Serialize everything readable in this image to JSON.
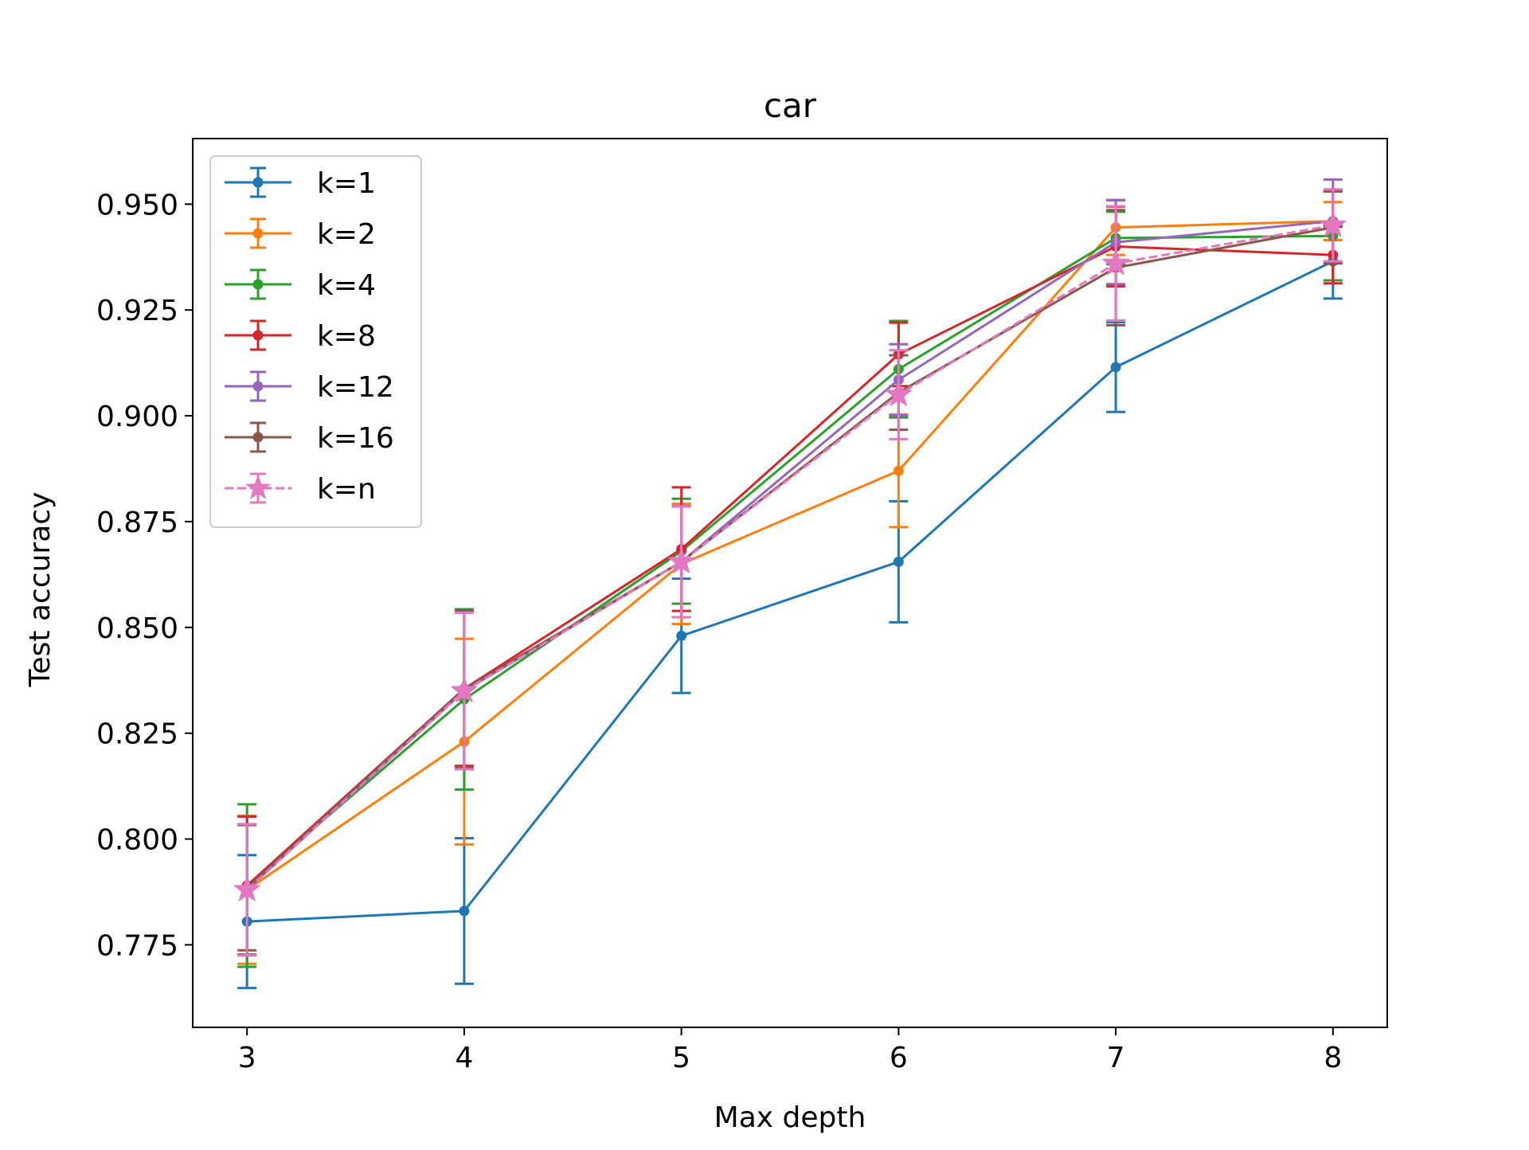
{
  "chart_data": {
    "type": "line",
    "title": "car",
    "xlabel": "Max depth",
    "ylabel": "Test accuracy",
    "x": [
      3,
      4,
      5,
      6,
      7,
      8
    ],
    "xlim": [
      2.75,
      8.25
    ],
    "ylim": [
      0.7555,
      0.9655
    ],
    "xticks": [
      "3",
      "4",
      "5",
      "6",
      "7",
      "8"
    ],
    "yticks": [
      "0.775",
      "0.800",
      "0.825",
      "0.850",
      "0.875",
      "0.900",
      "0.925",
      "0.950"
    ],
    "yticks_values": [
      0.775,
      0.8,
      0.825,
      0.85,
      0.875,
      0.9,
      0.925,
      0.95
    ],
    "grid": false,
    "legend_position": "top-left",
    "series": [
      {
        "name": "k=1",
        "color": "#1f77b4",
        "marker": "circle",
        "dashed": false,
        "values": [
          0.7805,
          0.783,
          0.848,
          0.8655,
          0.9115,
          0.9365
        ],
        "errors": [
          0.0157,
          0.0172,
          0.0135,
          0.0143,
          0.0106,
          0.0088
        ]
      },
      {
        "name": "k=2",
        "color": "#ff7f0e",
        "marker": "circle",
        "dashed": false,
        "values": [
          0.788,
          0.823,
          0.865,
          0.887,
          0.9445,
          0.946
        ],
        "errors": [
          0.0175,
          0.0243,
          0.0142,
          0.0133,
          0.0065,
          0.0045
        ]
      },
      {
        "name": "k=4",
        "color": "#2ca02c",
        "marker": "circle",
        "dashed": false,
        "values": [
          0.789,
          0.833,
          0.868,
          0.911,
          0.942,
          0.9425
        ],
        "errors": [
          0.0192,
          0.0213,
          0.0124,
          0.0114,
          0.0062,
          0.0105
        ]
      },
      {
        "name": "k=8",
        "color": "#d62728",
        "marker": "circle",
        "dashed": false,
        "values": [
          0.789,
          0.8355,
          0.8685,
          0.9145,
          0.94,
          0.938
        ],
        "errors": [
          0.0163,
          0.0182,
          0.0146,
          0.0075,
          0.0094,
          0.0067
        ]
      },
      {
        "name": "k=12",
        "color": "#9467bd",
        "marker": "circle",
        "dashed": false,
        "values": [
          0.788,
          0.835,
          0.8655,
          0.9085,
          0.941,
          0.946
        ],
        "errors": [
          0.0155,
          0.0185,
          0.0131,
          0.0084,
          0.0099,
          0.0098
        ]
      },
      {
        "name": "k=16",
        "color": "#8c564b",
        "marker": "circle",
        "dashed": false,
        "values": [
          0.7885,
          0.8355,
          0.8655,
          0.9055,
          0.935,
          0.9445
        ],
        "errors": [
          0.0148,
          0.0185,
          0.0131,
          0.0088,
          0.0136,
          0.0085
        ]
      },
      {
        "name": "k=n",
        "color": "#e377c2",
        "marker": "star",
        "dashed": true,
        "values": [
          0.788,
          0.835,
          0.8655,
          0.905,
          0.936,
          0.945
        ],
        "errors": [
          0.0155,
          0.0185,
          0.0131,
          0.0105,
          0.0135,
          0.0085
        ]
      }
    ]
  }
}
